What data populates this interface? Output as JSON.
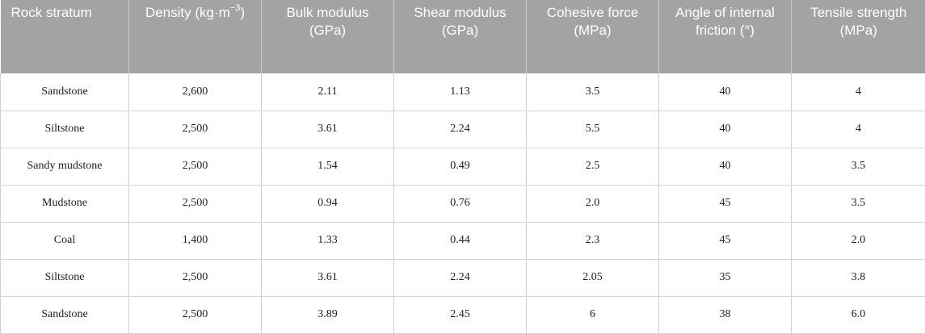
{
  "table": {
    "headers": [
      {
        "text": "Rock stratum"
      },
      {
        "text": "Density (kg·m",
        "sup": "−3",
        "suffix": ")"
      },
      {
        "text": "Bulk modulus (GPa)"
      },
      {
        "text": "Shear modulus (GPa)"
      },
      {
        "text": "Cohesive force (MPa)"
      },
      {
        "text": "Angle of internal friction (°)"
      },
      {
        "text": "Tensile strength (MPa)"
      }
    ],
    "rows": [
      [
        "Sandstone",
        "2,600",
        "2.11",
        "1.13",
        "3.5",
        "40",
        "4"
      ],
      [
        "Siltstone",
        "2,500",
        "3.61",
        "2.24",
        "5.5",
        "40",
        "4"
      ],
      [
        "Sandy mudstone",
        "2,500",
        "1.54",
        "0.49",
        "2.5",
        "40",
        "3.5"
      ],
      [
        "Mudstone",
        "2,500",
        "0.94",
        "0.76",
        "2.0",
        "45",
        "3.5"
      ],
      [
        "Coal",
        "1,400",
        "1.33",
        "0.44",
        "2.3",
        "45",
        "2.0"
      ],
      [
        "Siltstone",
        "2,500",
        "3.61",
        "2.24",
        "2.05",
        "35",
        "3.8"
      ],
      [
        "Sandstone",
        "2,500",
        "3.89",
        "2.45",
        "6",
        "38",
        "6.0"
      ]
    ]
  },
  "colors": {
    "header_bg": "#a3a3a3",
    "header_text": "#ffffff",
    "grid": "#d4d4d4"
  }
}
